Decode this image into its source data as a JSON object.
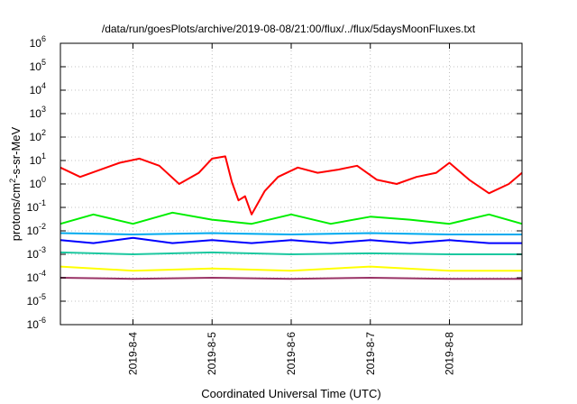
{
  "chart_data": {
    "type": "line",
    "title": "/data/run/goesPlots/archive/2019-08-08/21:00/flux/../flux/5daysMoonFluxes.txt",
    "xlabel": "Coordinated Universal Time (UTC)",
    "ylabel": {
      "base": "protons/cm",
      "sup": "2",
      "rest": "-s-sr-MeV"
    },
    "yscale": "log",
    "ylim_exp": [
      -6,
      6
    ],
    "y_ticks": [
      {
        "base": "10",
        "exp": "-6"
      },
      {
        "base": "10",
        "exp": "-5"
      },
      {
        "base": "10",
        "exp": "-4"
      },
      {
        "base": "10",
        "exp": "-3"
      },
      {
        "base": "10",
        "exp": "-2"
      },
      {
        "base": "10",
        "exp": "-1"
      },
      {
        "base": "10",
        "exp": "0"
      },
      {
        "base": "10",
        "exp": "1"
      },
      {
        "base": "10",
        "exp": "2"
      },
      {
        "base": "10",
        "exp": "3"
      },
      {
        "base": "10",
        "exp": "4"
      },
      {
        "base": "10",
        "exp": "5"
      },
      {
        "base": "10",
        "exp": "6"
      }
    ],
    "x_ticks": [
      "2019-8-4",
      "2019-8-5",
      "2019-8-6",
      "2019-8-7",
      "2019-8-8"
    ],
    "xlim": [
      "2019-08-03 02:00",
      "2019-08-08 22:00"
    ],
    "grid": true,
    "legend": "none",
    "series": [
      {
        "color": "#ff0000",
        "x": [
          "2019-08-03 02:00",
          "2019-08-03 08:00",
          "2019-08-03 14:00",
          "2019-08-03 20:00",
          "2019-08-04 02:00",
          "2019-08-04 08:00",
          "2019-08-04 14:00",
          "2019-08-04 20:00",
          "2019-08-05 00:00",
          "2019-08-05 04:00",
          "2019-08-05 06:00",
          "2019-08-05 08:00",
          "2019-08-05 10:00",
          "2019-08-05 12:00",
          "2019-08-05 16:00",
          "2019-08-05 20:00",
          "2019-08-06 02:00",
          "2019-08-06 08:00",
          "2019-08-06 14:00",
          "2019-08-06 20:00",
          "2019-08-07 02:00",
          "2019-08-07 08:00",
          "2019-08-07 14:00",
          "2019-08-07 20:00",
          "2019-08-08 00:00",
          "2019-08-08 06:00",
          "2019-08-08 12:00",
          "2019-08-08 18:00",
          "2019-08-08 22:00"
        ],
        "y": [
          5,
          2,
          4,
          8,
          12,
          6,
          1,
          3,
          12,
          15,
          1.2,
          0.2,
          0.3,
          0.05,
          0.5,
          2,
          5,
          3,
          4,
          6,
          1.5,
          1,
          2,
          3,
          8,
          1.5,
          0.4,
          1,
          3
        ]
      },
      {
        "color": "#00ee00",
        "x": [
          "2019-08-03 02:00",
          "2019-08-03 12:00",
          "2019-08-04 00:00",
          "2019-08-04 12:00",
          "2019-08-05 00:00",
          "2019-08-05 12:00",
          "2019-08-06 00:00",
          "2019-08-06 12:00",
          "2019-08-07 00:00",
          "2019-08-07 12:00",
          "2019-08-08 00:00",
          "2019-08-08 12:00",
          "2019-08-08 22:00"
        ],
        "y": [
          0.02,
          0.05,
          0.02,
          0.06,
          0.03,
          0.02,
          0.05,
          0.02,
          0.04,
          0.03,
          0.02,
          0.05,
          0.02
        ]
      },
      {
        "color": "#0000ff",
        "x": [
          "2019-08-03 02:00",
          "2019-08-03 12:00",
          "2019-08-04 00:00",
          "2019-08-04 12:00",
          "2019-08-05 00:00",
          "2019-08-05 12:00",
          "2019-08-06 00:00",
          "2019-08-06 12:00",
          "2019-08-07 00:00",
          "2019-08-07 12:00",
          "2019-08-08 00:00",
          "2019-08-08 12:00",
          "2019-08-08 22:00"
        ],
        "y": [
          0.004,
          0.003,
          0.005,
          0.003,
          0.004,
          0.003,
          0.004,
          0.003,
          0.004,
          0.003,
          0.004,
          0.003,
          0.003
        ]
      },
      {
        "color": "#00aaee",
        "x": [
          "2019-08-03 02:00",
          "2019-08-04 00:00",
          "2019-08-05 00:00",
          "2019-08-06 00:00",
          "2019-08-07 00:00",
          "2019-08-08 00:00",
          "2019-08-08 22:00"
        ],
        "y": [
          0.008,
          0.007,
          0.008,
          0.007,
          0.008,
          0.007,
          0.007
        ]
      },
      {
        "color": "#1cc8a0",
        "x": [
          "2019-08-03 02:00",
          "2019-08-04 00:00",
          "2019-08-05 00:00",
          "2019-08-06 00:00",
          "2019-08-07 00:00",
          "2019-08-08 00:00",
          "2019-08-08 22:00"
        ],
        "y": [
          0.0012,
          0.001,
          0.0012,
          0.001,
          0.0011,
          0.001,
          0.001
        ]
      },
      {
        "color": "#ffff00",
        "x": [
          "2019-08-03 02:00",
          "2019-08-04 00:00",
          "2019-08-05 00:00",
          "2019-08-06 00:00",
          "2019-08-07 00:00",
          "2019-08-08 00:00",
          "2019-08-08 22:00"
        ],
        "y": [
          0.0003,
          0.0002,
          0.00025,
          0.0002,
          0.0003,
          0.0002,
          0.0002
        ]
      },
      {
        "color": "#993366",
        "x": [
          "2019-08-03 02:00",
          "2019-08-04 00:00",
          "2019-08-05 00:00",
          "2019-08-06 00:00",
          "2019-08-07 00:00",
          "2019-08-08 00:00",
          "2019-08-08 22:00"
        ],
        "y": [
          0.0001,
          9e-05,
          0.0001,
          9e-05,
          0.0001,
          9e-05,
          9e-05
        ]
      }
    ]
  }
}
